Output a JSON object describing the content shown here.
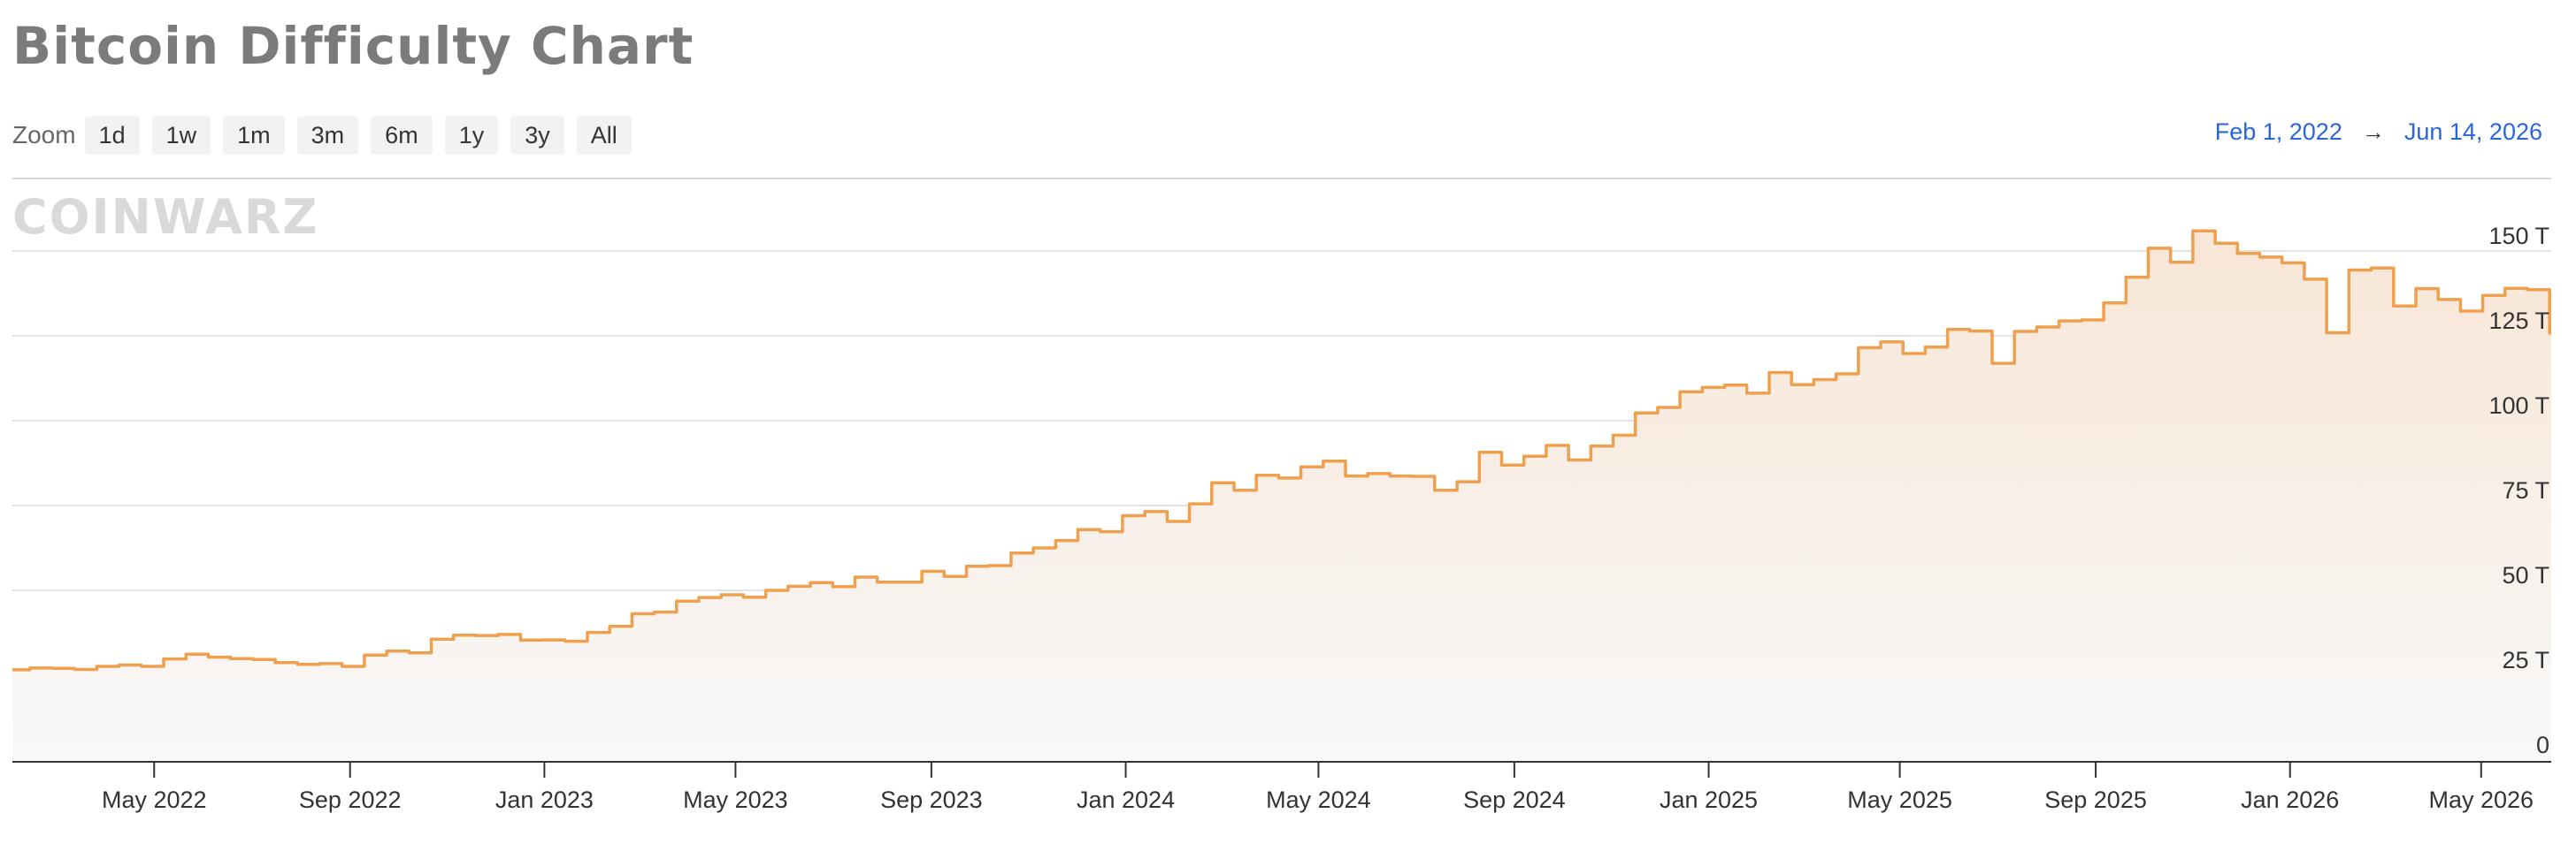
{
  "page": {
    "title": "Bitcoin Difficulty Chart"
  },
  "zoom": {
    "label": "Zoom",
    "buttons": [
      "1d",
      "1w",
      "1m",
      "3m",
      "6m",
      "1y",
      "3y",
      "All"
    ]
  },
  "range": {
    "from": "Feb 1, 2022",
    "arrow": "→",
    "to": "Jun 14, 2026"
  },
  "watermark": "COINWARZ",
  "colors": {
    "line": "#efa04e",
    "fill_top": "#f8e6d6",
    "fill_bottom": "#f8f8f8",
    "grid": "#e3e3e3",
    "axis": "#333333"
  },
  "chart_data": {
    "type": "area",
    "title": "Bitcoin Difficulty Chart",
    "xlabel": "",
    "ylabel": "",
    "x_range": [
      "2022-02-01",
      "2026-06-14"
    ],
    "ylim": [
      0,
      160
    ],
    "y_unit": "T",
    "y_ticks": [
      0,
      25,
      50,
      75,
      100,
      125,
      150
    ],
    "y_tick_labels": [
      "0",
      "25 T",
      "50 T",
      "75 T",
      "100 T",
      "125 T",
      "150 T"
    ],
    "x_ticks": [
      "2022-05-01",
      "2022-09-01",
      "2023-01-01",
      "2023-05-01",
      "2023-09-01",
      "2024-01-01",
      "2024-05-01",
      "2024-09-01",
      "2025-01-01",
      "2025-05-01",
      "2025-09-01",
      "2026-01-01",
      "2026-05-01"
    ],
    "x_tick_labels": [
      "May 2022",
      "Sep 2022",
      "Jan 2023",
      "May 2023",
      "Sep 2023",
      "Jan 2024",
      "May 2024",
      "Sep 2024",
      "Jan 2025",
      "May 2025",
      "Sep 2025",
      "Jan 2026",
      "May 2026"
    ],
    "grid": true,
    "series": [
      {
        "points": [
          [
            "2022-02-01",
            26.6
          ],
          [
            "2022-02-12",
            27.1
          ],
          [
            "2022-02-26",
            27.0
          ],
          [
            "2022-03-12",
            26.7
          ],
          [
            "2022-03-26",
            27.6
          ],
          [
            "2022-04-09",
            28.0
          ],
          [
            "2022-04-23",
            27.6
          ],
          [
            "2022-05-07",
            29.8
          ],
          [
            "2022-05-21",
            31.2
          ],
          [
            "2022-06-04",
            30.3
          ],
          [
            "2022-06-18",
            29.9
          ],
          [
            "2022-07-02",
            29.6
          ],
          [
            "2022-07-16",
            28.7
          ],
          [
            "2022-07-30",
            28.2
          ],
          [
            "2022-08-13",
            28.4
          ],
          [
            "2022-08-27",
            27.6
          ],
          [
            "2022-09-10",
            30.9
          ],
          [
            "2022-09-24",
            32.1
          ],
          [
            "2022-10-08",
            31.6
          ],
          [
            "2022-10-22",
            35.6
          ],
          [
            "2022-11-05",
            36.8
          ],
          [
            "2022-11-19",
            36.7
          ],
          [
            "2022-12-03",
            37.0
          ],
          [
            "2022-12-17",
            35.3
          ],
          [
            "2022-12-31",
            35.4
          ],
          [
            "2023-01-14",
            35.0
          ],
          [
            "2023-01-28",
            37.6
          ],
          [
            "2023-02-11",
            39.4
          ],
          [
            "2023-02-25",
            43.1
          ],
          [
            "2023-03-11",
            43.6
          ],
          [
            "2023-03-25",
            46.8
          ],
          [
            "2023-04-08",
            47.9
          ],
          [
            "2023-04-22",
            48.7
          ],
          [
            "2023-05-06",
            48.0
          ],
          [
            "2023-05-20",
            50.0
          ],
          [
            "2023-06-03",
            51.2
          ],
          [
            "2023-06-17",
            52.3
          ],
          [
            "2023-07-01",
            51.1
          ],
          [
            "2023-07-15",
            53.9
          ],
          [
            "2023-07-29",
            52.4
          ],
          [
            "2023-08-12",
            52.4
          ],
          [
            "2023-08-26",
            55.6
          ],
          [
            "2023-09-09",
            54.1
          ],
          [
            "2023-09-23",
            57.1
          ],
          [
            "2023-10-07",
            57.3
          ],
          [
            "2023-10-21",
            61.0
          ],
          [
            "2023-11-04",
            62.5
          ],
          [
            "2023-11-18",
            64.7
          ],
          [
            "2023-12-02",
            67.9
          ],
          [
            "2023-12-16",
            67.3
          ],
          [
            "2023-12-30",
            72.0
          ],
          [
            "2024-01-13",
            73.2
          ],
          [
            "2024-01-27",
            70.3
          ],
          [
            "2024-02-10",
            75.5
          ],
          [
            "2024-02-24",
            81.7
          ],
          [
            "2024-03-09",
            79.5
          ],
          [
            "2024-03-23",
            83.9
          ],
          [
            "2024-04-06",
            83.1
          ],
          [
            "2024-04-20",
            86.4
          ],
          [
            "2024-05-04",
            88.1
          ],
          [
            "2024-05-18",
            83.7
          ],
          [
            "2024-06-01",
            84.4
          ],
          [
            "2024-06-15",
            83.7
          ],
          [
            "2024-06-29",
            83.6
          ],
          [
            "2024-07-13",
            79.5
          ],
          [
            "2024-07-27",
            82.0
          ],
          [
            "2024-08-10",
            90.7
          ],
          [
            "2024-08-24",
            86.9
          ],
          [
            "2024-09-07",
            89.5
          ],
          [
            "2024-09-21",
            92.7
          ],
          [
            "2024-10-05",
            88.4
          ],
          [
            "2024-10-19",
            92.5
          ],
          [
            "2024-11-02",
            95.7
          ],
          [
            "2024-11-16",
            102.3
          ],
          [
            "2024-11-30",
            103.9
          ],
          [
            "2024-12-14",
            108.5
          ],
          [
            "2024-12-28",
            109.8
          ],
          [
            "2025-01-11",
            110.5
          ],
          [
            "2025-01-25",
            108.1
          ],
          [
            "2025-02-08",
            114.2
          ],
          [
            "2025-02-22",
            110.6
          ],
          [
            "2025-03-08",
            112.1
          ],
          [
            "2025-03-22",
            113.8
          ],
          [
            "2025-04-05",
            121.5
          ],
          [
            "2025-04-19",
            123.2
          ],
          [
            "2025-05-03",
            119.8
          ],
          [
            "2025-05-17",
            121.7
          ],
          [
            "2025-05-31",
            126.9
          ],
          [
            "2025-06-14",
            126.4
          ],
          [
            "2025-06-28",
            116.9
          ],
          [
            "2025-07-12",
            126.3
          ],
          [
            "2025-07-26",
            127.6
          ],
          [
            "2025-08-09",
            129.4
          ],
          [
            "2025-08-23",
            129.7
          ],
          [
            "2025-09-06",
            134.7
          ],
          [
            "2025-09-20",
            142.3
          ],
          [
            "2025-10-04",
            150.8
          ],
          [
            "2025-10-18",
            146.7
          ],
          [
            "2025-11-01",
            155.9
          ],
          [
            "2025-11-15",
            152.3
          ],
          [
            "2025-11-29",
            149.3
          ],
          [
            "2025-12-13",
            148.2
          ],
          [
            "2025-12-27",
            146.5
          ],
          [
            "2026-01-10",
            141.7
          ],
          [
            "2026-01-24",
            125.9
          ],
          [
            "2026-02-07",
            144.4
          ],
          [
            "2026-02-21",
            145.0
          ],
          [
            "2026-03-07",
            133.8
          ],
          [
            "2026-03-21",
            138.9
          ],
          [
            "2026-04-04",
            135.7
          ],
          [
            "2026-04-18",
            132.3
          ],
          [
            "2026-05-02",
            136.9
          ],
          [
            "2026-05-16",
            139.0
          ],
          [
            "2026-05-30",
            138.6
          ],
          [
            "2026-06-13",
            125.8
          ]
        ]
      }
    ]
  }
}
